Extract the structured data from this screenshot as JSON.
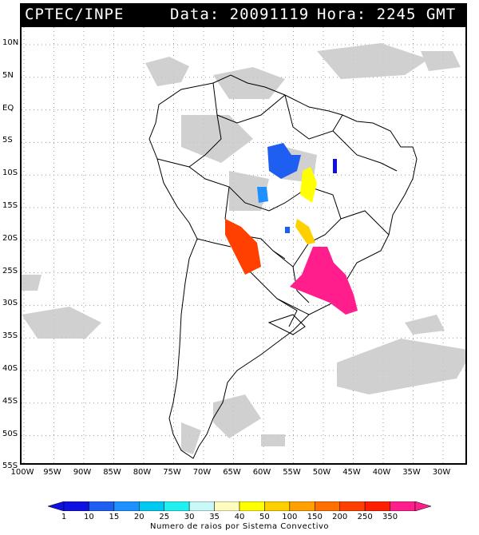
{
  "header": {
    "source": "CPTEC/INPE",
    "date_text": "Data: 20091119",
    "time_text": "Hora: 2245 GMT"
  },
  "latitude_labels": [
    "10N",
    "5N",
    "EQ",
    "5S",
    "10S",
    "15S",
    "20S",
    "25S",
    "30S",
    "35S",
    "40S",
    "45S",
    "50S",
    "55S"
  ],
  "longitude_labels": [
    "100W",
    "95W",
    "90W",
    "85W",
    "80W",
    "75W",
    "70W",
    "65W",
    "60W",
    "55W",
    "50W",
    "45W",
    "40W",
    "35W",
    "30W"
  ],
  "colorbar": {
    "labels": [
      "1",
      "10",
      "15",
      "20",
      "25",
      "30",
      "35",
      "40",
      "50",
      "100",
      "150",
      "200",
      "250",
      "350"
    ],
    "colors": [
      "#1010e0",
      "#1e5ef0",
      "#1e90ff",
      "#00c8f0",
      "#20f0f0",
      "#c8f8f8",
      "#fffcc0",
      "#ffff00",
      "#ffd000",
      "#ffa000",
      "#ff7000",
      "#ff4000",
      "#ff1e00",
      "#ff1e8c"
    ],
    "title": "Numero de raios por Sistema Convectivo"
  },
  "legend_colors": {
    "cloud": "#c8c8c8",
    "land_border": "#000000",
    "grid": "#9a9a9a"
  }
}
